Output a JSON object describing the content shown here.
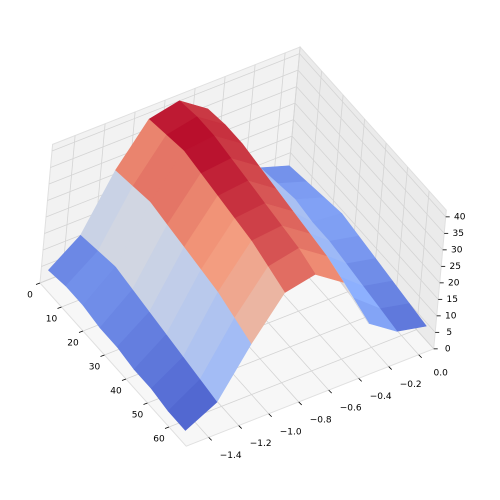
{
  "chart_data": {
    "type": "surface",
    "x": [
      0,
      8,
      16,
      24,
      32,
      40,
      48,
      56,
      64
    ],
    "y": [
      -1.5,
      -1.3,
      -1.1,
      -0.9,
      -0.7,
      -0.5,
      -0.3,
      -0.1,
      0.1
    ],
    "z": [
      [
        3,
        10,
        26,
        38,
        40,
        34,
        18,
        9,
        6
      ],
      [
        4,
        11,
        27,
        39,
        41,
        35,
        19,
        10,
        7
      ],
      [
        4,
        12,
        28,
        40,
        41,
        35,
        19,
        11,
        8
      ],
      [
        3,
        11,
        27,
        39,
        40,
        34,
        18,
        10,
        9
      ],
      [
        3,
        10,
        26,
        38,
        39,
        33,
        17,
        10,
        8
      ],
      [
        2,
        9,
        25,
        37,
        38,
        32,
        16,
        9,
        7
      ],
      [
        2,
        8,
        24,
        36,
        37,
        31,
        15,
        8,
        6
      ],
      [
        1,
        7,
        22,
        34,
        36,
        30,
        14,
        7,
        5
      ],
      [
        1,
        6,
        20,
        32,
        34,
        28,
        12,
        6,
        4
      ]
    ],
    "colormap": [
      "#3b4cc0",
      "#8db0fe",
      "#dddddd",
      "#f49a7b",
      "#b40426"
    ],
    "xlim": [
      0,
      68
    ],
    "xticks": [
      0,
      10,
      20,
      30,
      40,
      50,
      60
    ],
    "ylim": [
      -1.55,
      0.1
    ],
    "yticks": [
      {
        "value": -1.4,
        "label": "−1.4"
      },
      {
        "value": -1.2,
        "label": "−1.2"
      },
      {
        "value": -1.0,
        "label": "−1.0"
      },
      {
        "value": -0.8,
        "label": "−0.8"
      },
      {
        "value": -0.6,
        "label": "−0.6"
      },
      {
        "value": -0.4,
        "label": "−0.4"
      },
      {
        "value": -0.2,
        "label": "−0.2"
      },
      {
        "value": 0,
        "label": "0.0"
      }
    ],
    "zlim": [
      0,
      42
    ],
    "zticks": [
      0,
      5,
      10,
      15,
      20,
      25,
      30,
      35,
      40
    ],
    "grid": true
  }
}
